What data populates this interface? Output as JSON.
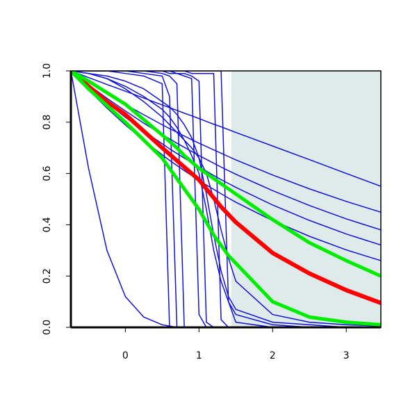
{
  "chart_data": {
    "type": "line",
    "x": [
      -0.74,
      -0.5,
      -0.25,
      0,
      0.25,
      0.5,
      0.6,
      0.7,
      0.8,
      0.9,
      1,
      1.1,
      1.2,
      1.3,
      1.4,
      1.5,
      2,
      2.5,
      3,
      3.47
    ],
    "xlim": [
      -0.74,
      3.47
    ],
    "ylim": [
      0,
      1
    ],
    "xticks": [
      0,
      1,
      2,
      3
    ],
    "yticks": [
      {
        "value": 0,
        "label": "0.0"
      },
      0.2,
      0.4,
      0.6,
      0.8,
      {
        "value": 1,
        "label": "1.0"
      }
    ],
    "shade": {
      "xlim": [
        1.44,
        3.47
      ],
      "color": "#dfeaea"
    },
    "series": [
      {
        "color": "#1010e0",
        "linewidth": 1.5,
        "values": [
          1,
          0.62,
          0.3,
          0.12,
          0.04,
          0.01,
          0.005,
          0,
          0,
          0,
          0,
          0,
          0,
          0,
          0,
          0,
          0,
          0,
          0,
          0
        ]
      },
      {
        "color": "#1010e0",
        "linewidth": 1.5,
        "values": [
          1,
          0.974,
          0.947,
          0.921,
          0.894,
          0.867,
          0.857,
          0.846,
          0.835,
          0.825,
          0.814,
          0.803,
          0.792,
          0.782,
          0.771,
          0.76,
          0.707,
          0.654,
          0.6,
          0.55
        ]
      },
      {
        "color": "#1010e0",
        "linewidth": 1.5,
        "values": [
          1,
          0.955,
          0.911,
          0.869,
          0.829,
          0.79,
          0.775,
          0.761,
          0.746,
          0.732,
          0.718,
          0.705,
          0.692,
          0.679,
          0.666,
          0.653,
          0.594,
          0.54,
          0.491,
          0.449
        ]
      },
      {
        "color": "#1010e0",
        "linewidth": 1.5,
        "values": [
          1,
          0.946,
          0.893,
          0.844,
          0.796,
          0.752,
          0.735,
          0.718,
          0.702,
          0.686,
          0.67,
          0.655,
          0.64,
          0.625,
          0.611,
          0.597,
          0.533,
          0.475,
          0.423,
          0.38
        ]
      },
      {
        "color": "#1010e0",
        "linewidth": 1.5,
        "values": [
          1,
          0.937,
          0.876,
          0.819,
          0.765,
          0.716,
          0.696,
          0.678,
          0.66,
          0.642,
          0.625,
          0.609,
          0.592,
          0.576,
          0.561,
          0.546,
          0.477,
          0.417,
          0.364,
          0.321
        ]
      },
      {
        "color": "#1010e0",
        "linewidth": 1.5,
        "values": [
          1,
          0.926,
          0.855,
          0.789,
          0.729,
          0.673,
          0.651,
          0.631,
          0.611,
          0.592,
          0.573,
          0.555,
          0.538,
          0.521,
          0.504,
          0.488,
          0.416,
          0.355,
          0.302,
          0.26
        ]
      },
      {
        "color": "#1010e0",
        "linewidth": 1.5,
        "values": [
          1,
          1,
          1,
          0.99,
          0.98,
          0.95,
          0,
          0,
          0,
          0,
          0,
          0,
          0,
          0,
          0,
          0,
          0,
          0,
          0,
          0
        ]
      },
      {
        "color": "#1010e0",
        "linewidth": 1.5,
        "values": [
          1,
          1,
          1,
          1,
          0.99,
          0.98,
          0.9,
          0,
          0,
          0,
          0,
          0,
          0,
          0,
          0,
          0,
          0,
          0,
          0,
          0
        ]
      },
      {
        "color": "#1010e0",
        "linewidth": 1.5,
        "values": [
          1,
          1,
          1,
          1,
          1,
          0.99,
          0.98,
          0.95,
          0,
          0,
          0,
          0,
          0,
          0,
          0,
          0,
          0,
          0,
          0,
          0
        ]
      },
      {
        "color": "#1010e0",
        "linewidth": 1.5,
        "values": [
          1,
          1,
          1,
          1,
          1,
          1,
          0.99,
          0.99,
          0.98,
          0.97,
          0.05,
          0,
          0,
          0,
          0,
          0,
          0,
          0,
          0,
          0
        ]
      },
      {
        "color": "#1010e0",
        "linewidth": 1.5,
        "values": [
          1,
          1,
          1,
          1,
          1,
          1,
          1,
          0.99,
          0.99,
          0.98,
          0.96,
          0.02,
          0,
          0,
          0,
          0,
          0,
          0,
          0,
          0
        ]
      },
      {
        "color": "#1010e0",
        "linewidth": 1.5,
        "values": [
          1,
          1,
          1,
          1,
          1,
          1,
          1,
          1,
          1,
          0.99,
          0.99,
          0.99,
          0.99,
          0.03,
          0,
          0,
          0,
          0,
          0,
          0
        ]
      },
      {
        "color": "#1010e0",
        "linewidth": 1.5,
        "values": [
          1,
          1,
          1,
          1,
          1,
          1,
          1,
          1,
          1,
          1,
          1,
          1,
          1,
          1,
          0.1,
          0.02,
          0,
          0,
          0,
          0
        ]
      },
      {
        "color": "#1010e0",
        "linewidth": 1.5,
        "values": [
          1,
          0.99,
          0.97,
          0.94,
          0.9,
          0.85,
          0.82,
          0.78,
          0.73,
          0.67,
          0.6,
          0.46,
          0.3,
          0.18,
          0.1,
          0.05,
          0.01,
          0,
          0,
          0
        ]
      },
      {
        "color": "#1010e0",
        "linewidth": 1.5,
        "values": [
          1,
          0.99,
          0.97,
          0.93,
          0.88,
          0.82,
          0.79,
          0.76,
          0.73,
          0.7,
          0.66,
          0.6,
          0.5,
          0.38,
          0.27,
          0.18,
          0.05,
          0.02,
          0.01,
          0.005
        ]
      },
      {
        "color": "#1010e0",
        "linewidth": 1.5,
        "values": [
          1,
          0.99,
          0.98,
          0.96,
          0.93,
          0.88,
          0.86,
          0.83,
          0.79,
          0.74,
          0.66,
          0.52,
          0.36,
          0.22,
          0.12,
          0.07,
          0.02,
          0.01,
          0,
          0
        ]
      },
      {
        "color": "#ff0000",
        "linewidth": 6,
        "values": [
          1,
          0.94,
          0.88,
          0.83,
          0.765,
          0.7,
          0.675,
          0.65,
          0.625,
          0.6,
          0.575,
          0.54,
          0.505,
          0.47,
          0.44,
          0.41,
          0.29,
          0.21,
          0.145,
          0.095
        ]
      },
      {
        "color": "#00ee00",
        "linewidth": 5,
        "values": [
          1,
          0.93,
          0.865,
          0.8,
          0.73,
          0.66,
          0.62,
          0.58,
          0.54,
          0.5,
          0.46,
          0.41,
          0.36,
          0.32,
          0.28,
          0.25,
          0.1,
          0.04,
          0.02,
          0.01
        ]
      },
      {
        "color": "#00ee00",
        "linewidth": 5,
        "values": [
          1,
          0.96,
          0.915,
          0.87,
          0.81,
          0.75,
          0.725,
          0.7,
          0.67,
          0.645,
          0.62,
          0.6,
          0.58,
          0.56,
          0.54,
          0.52,
          0.42,
          0.33,
          0.26,
          0.2
        ]
      }
    ]
  }
}
